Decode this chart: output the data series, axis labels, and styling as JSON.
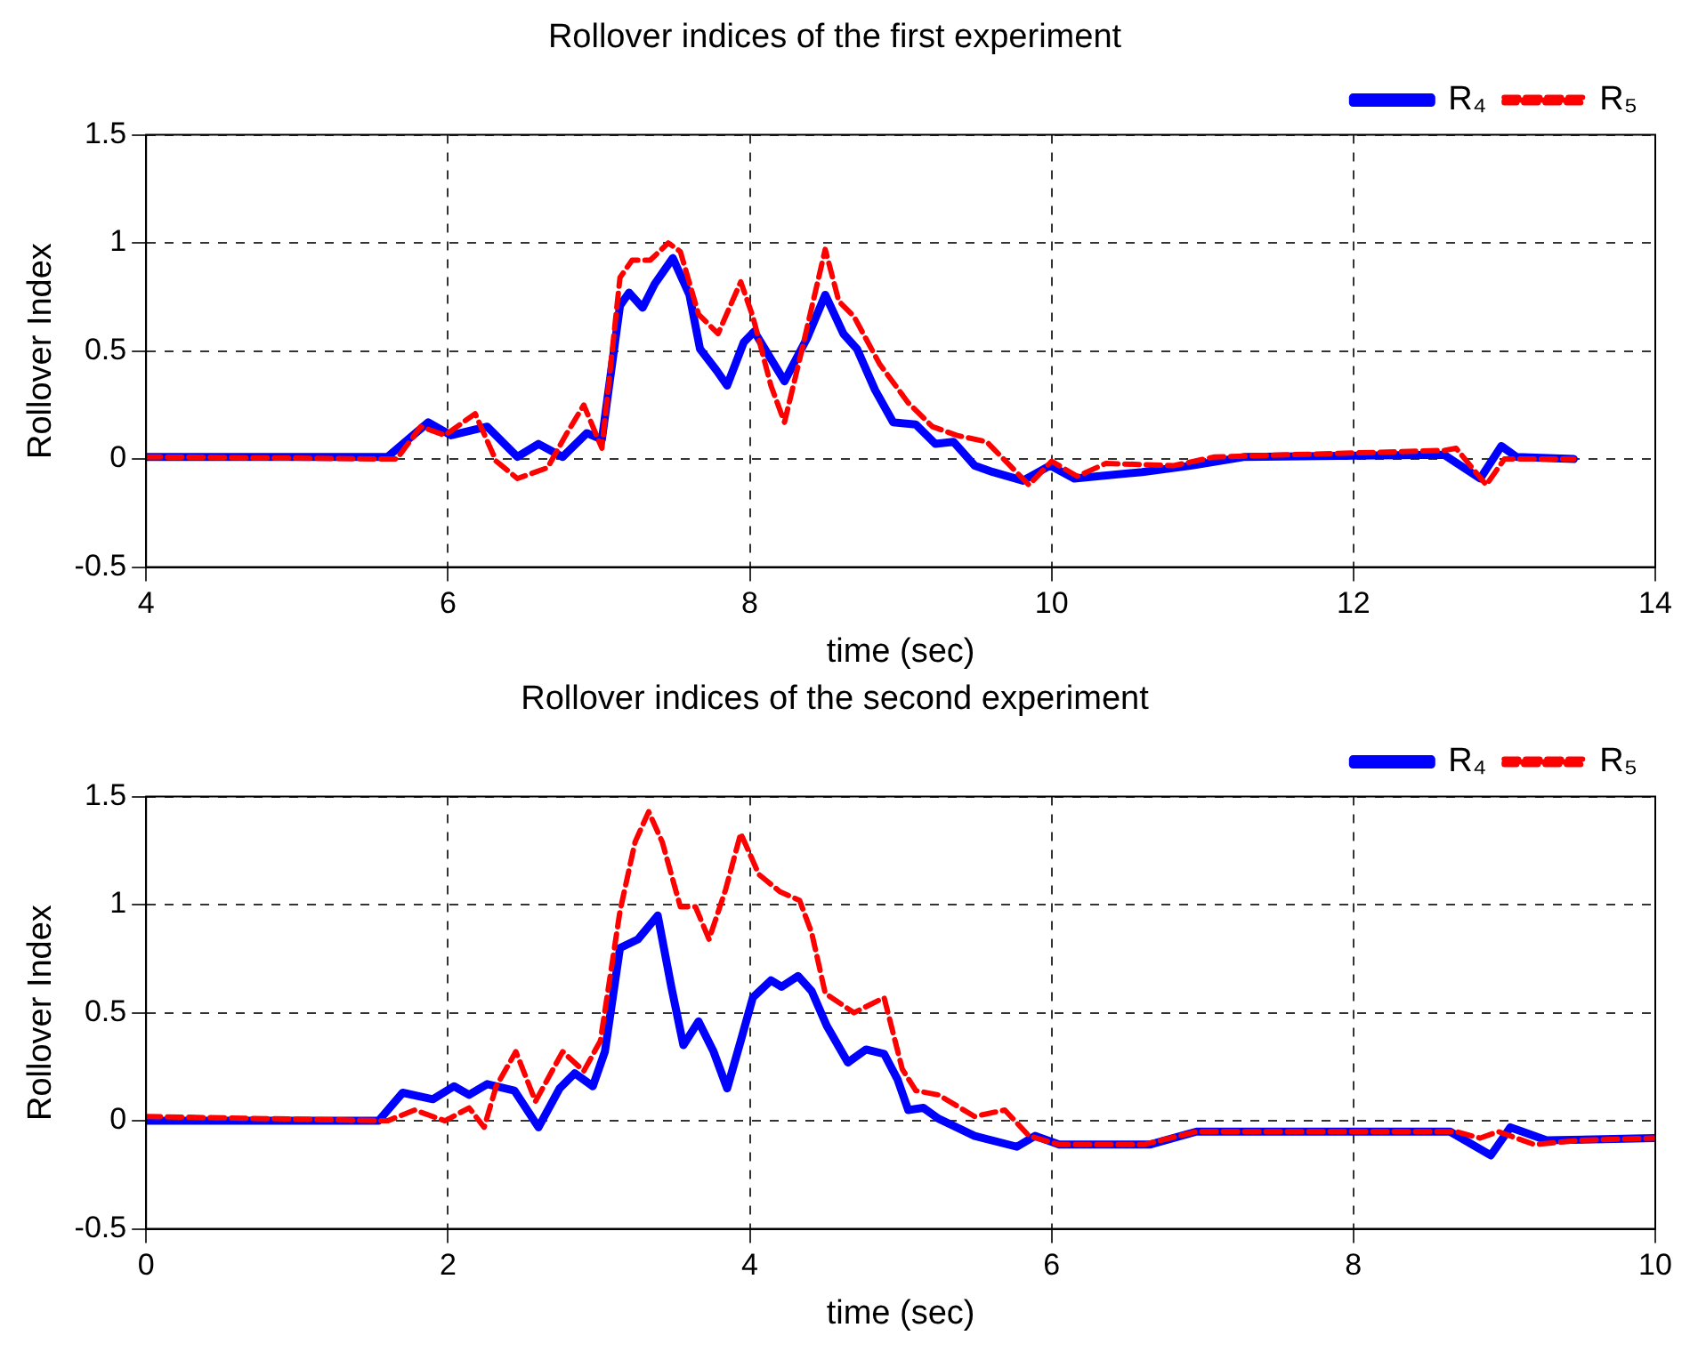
{
  "chart_data": [
    {
      "type": "line",
      "title": "Rollover indices of the first experiment",
      "xlabel": "time (sec)",
      "ylabel": "Rollover Index",
      "xlim": [
        4,
        14
      ],
      "xticks": [
        4,
        6,
        8,
        10,
        12,
        14
      ],
      "ylim": [
        -0.5,
        1.5
      ],
      "yticks": [
        -0.5,
        0,
        0.5,
        1,
        1.5
      ],
      "grid": true,
      "legend": "top right",
      "marker": "none",
      "series": [
        {
          "name": "R₄",
          "color": "#0000ff",
          "line_style": "solid",
          "x": [
            4,
            5.6,
            5.87,
            6.02,
            6.26,
            6.46,
            6.6,
            6.76,
            6.92,
            7.02,
            7.14,
            7.2,
            7.29,
            7.37,
            7.49,
            7.6,
            7.67,
            7.78,
            7.85,
            7.96,
            8.03,
            8.23,
            8.38,
            8.5,
            8.62,
            8.71,
            8.83,
            8.95,
            9.1,
            9.23,
            9.35,
            9.49,
            9.61,
            9.81,
            9.99,
            10.15,
            10.6,
            10.93,
            11.28,
            12.6,
            12.84,
            12.98,
            13.08,
            13.46
          ],
          "values": [
            0.01,
            0.01,
            0.17,
            0.11,
            0.15,
            0.01,
            0.07,
            0.01,
            0.12,
            0.09,
            0.71,
            0.77,
            0.7,
            0.81,
            0.93,
            0.76,
            0.51,
            0.41,
            0.34,
            0.54,
            0.59,
            0.36,
            0.56,
            0.76,
            0.58,
            0.51,
            0.32,
            0.17,
            0.16,
            0.07,
            0.08,
            -0.03,
            -0.06,
            -0.1,
            -0.03,
            -0.09,
            -0.06,
            -0.03,
            0.01,
            0.02,
            -0.09,
            0.06,
            0.01,
            0
          ]
        },
        {
          "name": "R₅",
          "color": "#ff0000",
          "line_style": "dashed",
          "x": [
            4,
            5.66,
            5.82,
            5.98,
            6.18,
            6.32,
            6.46,
            6.66,
            6.78,
            6.9,
            7.02,
            7.14,
            7.22,
            7.34,
            7.46,
            7.54,
            7.66,
            7.79,
            7.94,
            8.02,
            8.14,
            8.23,
            8.33,
            8.5,
            8.59,
            8.69,
            8.86,
            9.05,
            9.21,
            9.37,
            9.57,
            9.85,
            10,
            10.17,
            10.36,
            10.81,
            11.08,
            12.6,
            12.68,
            12.88,
            13,
            13.46
          ],
          "values": [
            0.01,
            0,
            0.15,
            0.11,
            0.21,
            -0.01,
            -0.09,
            -0.04,
            0.11,
            0.25,
            0.05,
            0.84,
            0.92,
            0.92,
            1,
            0.96,
            0.67,
            0.58,
            0.82,
            0.66,
            0.34,
            0.17,
            0.46,
            0.97,
            0.73,
            0.66,
            0.44,
            0.26,
            0.15,
            0.11,
            0.08,
            -0.12,
            -0.01,
            -0.08,
            -0.02,
            -0.03,
            0.01,
            0.04,
            0.05,
            -0.12,
            0,
            0
          ]
        }
      ]
    },
    {
      "type": "line",
      "title": "Rollover indices of the second experiment",
      "xlabel": "time (sec)",
      "ylabel": "Rollover Index",
      "xlim": [
        0,
        10
      ],
      "xticks": [
        0,
        2,
        4,
        6,
        8,
        10
      ],
      "ylim": [
        -0.5,
        1.5
      ],
      "yticks": [
        -0.5,
        0,
        0.5,
        1,
        1.5
      ],
      "grid": true,
      "legend": "top right",
      "marker": "none",
      "series": [
        {
          "name": "R₄",
          "color": "#0000ff",
          "line_style": "solid",
          "x": [
            0,
            1.54,
            1.7,
            1.9,
            2.04,
            2.14,
            2.26,
            2.44,
            2.6,
            2.74,
            2.84,
            2.96,
            3.04,
            3.14,
            3.26,
            3.39,
            3.48,
            3.56,
            3.66,
            3.76,
            3.85,
            3.94,
            4.02,
            4.14,
            4.21,
            4.32,
            4.41,
            4.51,
            4.65,
            4.77,
            4.89,
            4.98,
            5.05,
            5.15,
            5.25,
            5.49,
            5.77,
            5.89,
            6.05,
            6.65,
            6.96,
            8.64,
            8.91,
            9.04,
            9.28,
            10
          ],
          "values": [
            0,
            0,
            0.13,
            0.1,
            0.16,
            0.12,
            0.17,
            0.14,
            -0.03,
            0.15,
            0.22,
            0.16,
            0.32,
            0.8,
            0.84,
            0.95,
            0.62,
            0.35,
            0.46,
            0.32,
            0.15,
            0.37,
            0.57,
            0.65,
            0.62,
            0.67,
            0.6,
            0.44,
            0.27,
            0.33,
            0.31,
            0.19,
            0.05,
            0.06,
            0.01,
            -0.07,
            -0.12,
            -0.07,
            -0.11,
            -0.11,
            -0.05,
            -0.05,
            -0.16,
            -0.03,
            -0.09,
            -0.08
          ]
        },
        {
          "name": "R₅",
          "color": "#ff0000",
          "line_style": "dashed",
          "x": [
            0,
            1.6,
            1.78,
            1.98,
            2.14,
            2.24,
            2.32,
            2.45,
            2.58,
            2.76,
            2.9,
            3.01,
            3.14,
            3.24,
            3.33,
            3.42,
            3.54,
            3.64,
            3.73,
            3.84,
            3.94,
            4.06,
            4.2,
            4.33,
            4.41,
            4.5,
            4.69,
            4.89,
            5.01,
            5.1,
            5.25,
            5.49,
            5.69,
            5.85,
            6.05,
            6.61,
            6.96,
            8.68,
            8.84,
            8.96,
            9.2,
            9.5,
            10
          ],
          "values": [
            0.02,
            0,
            0.05,
            0,
            0.06,
            -0.03,
            0.16,
            0.32,
            0.09,
            0.32,
            0.23,
            0.37,
            0.97,
            1.29,
            1.43,
            1.29,
            0.99,
            0.99,
            0.84,
            1.07,
            1.33,
            1.14,
            1.06,
            1.02,
            0.87,
            0.59,
            0.5,
            0.57,
            0.24,
            0.14,
            0.12,
            0.02,
            0.05,
            -0.07,
            -0.11,
            -0.11,
            -0.05,
            -0.05,
            -0.08,
            -0.05,
            -0.11,
            -0.09,
            -0.08
          ]
        }
      ]
    }
  ]
}
